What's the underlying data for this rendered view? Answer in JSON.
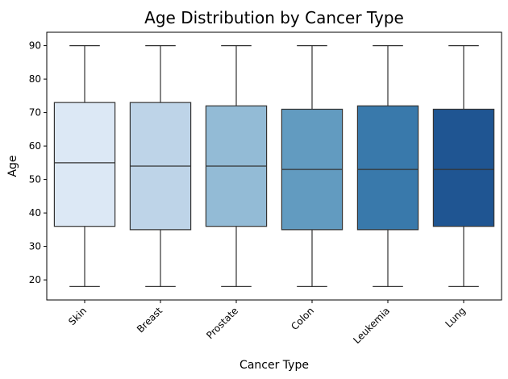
{
  "chart_data": {
    "type": "box",
    "title": "Age Distribution by Cancer Type",
    "xlabel": "Cancer Type",
    "ylabel": "Age",
    "ylim": [
      14,
      94
    ],
    "yticks": [
      20,
      30,
      40,
      50,
      60,
      70,
      80,
      90
    ],
    "grid": false,
    "categories": [
      "Skin",
      "Breast",
      "Prostate",
      "Colon",
      "Leukemia",
      "Lung"
    ],
    "boxes": [
      {
        "category": "Skin",
        "min": 18,
        "q1": 36,
        "median": 55,
        "q3": 73,
        "max": 90,
        "color": "#dce8f5"
      },
      {
        "category": "Breast",
        "min": 18,
        "q1": 35,
        "median": 54,
        "q3": 73,
        "max": 90,
        "color": "#bed4e8"
      },
      {
        "category": "Prostate",
        "min": 18,
        "q1": 36,
        "median": 54,
        "q3": 72,
        "max": 90,
        "color": "#93bbd6"
      },
      {
        "category": "Colon",
        "min": 18,
        "q1": 35,
        "median": 53,
        "q3": 71,
        "max": 90,
        "color": "#629bc0"
      },
      {
        "category": "Leukemia",
        "min": 18,
        "q1": 35,
        "median": 53,
        "q3": 72,
        "max": 90,
        "color": "#3979ab"
      },
      {
        "category": "Lung",
        "min": 18,
        "q1": 36,
        "median": 53,
        "q3": 71,
        "max": 90,
        "color": "#1f5592"
      }
    ]
  }
}
